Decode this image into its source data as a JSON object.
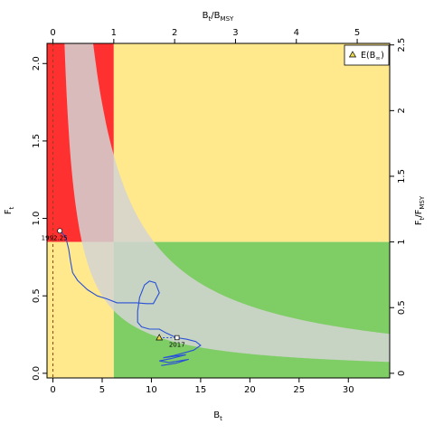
{
  "chart_data": {
    "type": "line",
    "xlabel_main": "B",
    "xlabel_sub": "t",
    "ylabel_main": "F",
    "ylabel_sub": "t",
    "top_xlabel": {
      "main1": "B",
      "sub1": "t",
      "slash": "/",
      "main2": "B",
      "sub2": "MSY"
    },
    "right_ylabel": {
      "main1": "F",
      "sub1": "t",
      "slash": "/",
      "main2": "F",
      "sub2": "MSY"
    },
    "xlim": [
      -0.6,
      34.2
    ],
    "ylim": [
      -0.03,
      2.13
    ],
    "bmsy": 6.18,
    "fmsy": 0.848,
    "x_ticks": [
      "0",
      "5",
      "10",
      "15",
      "20",
      "25",
      "30"
    ],
    "y_ticks": [
      "0.0",
      "0.5",
      "1.0",
      "1.5",
      "2.0"
    ],
    "top_ticks": [
      "0",
      "1",
      "2",
      "3",
      "4",
      "5"
    ],
    "right_ticks": [
      "0",
      "0.5",
      "1",
      "1.5",
      "2",
      "2.5"
    ],
    "colors": {
      "red": "#ff3030",
      "yellow": "#ffe98c",
      "green": "#7fcd65",
      "band": "#d3d3d3",
      "trajectory": "#2850d8",
      "dashed": "#8b4513"
    },
    "vertical_dashed_x": 0,
    "band_curves": {
      "upper_k": 2.5,
      "lower_k": 8.7
    },
    "trajectory": [
      [
        0.7,
        0.92
      ],
      [
        1.3,
        0.88
      ],
      [
        1.6,
        0.8
      ],
      [
        1.8,
        0.72
      ],
      [
        2.0,
        0.65
      ],
      [
        2.5,
        0.6
      ],
      [
        3.5,
        0.54
      ],
      [
        4.5,
        0.5
      ],
      [
        5.5,
        0.48
      ],
      [
        6.5,
        0.455
      ],
      [
        7.5,
        0.455
      ],
      [
        8.5,
        0.455
      ],
      [
        9.5,
        0.45
      ],
      [
        10.2,
        0.45
      ],
      [
        10.8,
        0.52
      ],
      [
        10.4,
        0.585
      ],
      [
        9.8,
        0.595
      ],
      [
        9.3,
        0.57
      ],
      [
        8.8,
        0.49
      ],
      [
        8.6,
        0.4
      ],
      [
        8.6,
        0.33
      ],
      [
        9.0,
        0.3
      ],
      [
        9.8,
        0.285
      ],
      [
        10.8,
        0.285
      ],
      [
        11.5,
        0.26
      ],
      [
        12.2,
        0.24
      ],
      [
        12.6,
        0.23
      ]
    ],
    "projection": [
      [
        12.6,
        0.23
      ],
      [
        13.6,
        0.22
      ],
      [
        14.5,
        0.205
      ],
      [
        15.0,
        0.18
      ],
      [
        14.3,
        0.15
      ],
      [
        13.5,
        0.135
      ],
      [
        12.3,
        0.115
      ],
      [
        11.2,
        0.1
      ],
      [
        13.5,
        0.12
      ],
      [
        12.0,
        0.095
      ],
      [
        10.8,
        0.08
      ],
      [
        11.8,
        0.07
      ],
      [
        13.8,
        0.09
      ],
      [
        12.5,
        0.065
      ],
      [
        11.0,
        0.05
      ]
    ],
    "first_point": {
      "x": 0.7,
      "y": 0.92,
      "label": "1992.25"
    },
    "last_point": {
      "x": 12.6,
      "y": 0.23,
      "label": "2017"
    },
    "e_point": {
      "x": 10.8,
      "y": 0.23
    },
    "e_dashed_to": {
      "x": 12.6,
      "y": 0.23
    },
    "legend": {
      "label_main": "E(B",
      "label_sub": "∞",
      "label_end": ")",
      "position": "top-right"
    }
  }
}
